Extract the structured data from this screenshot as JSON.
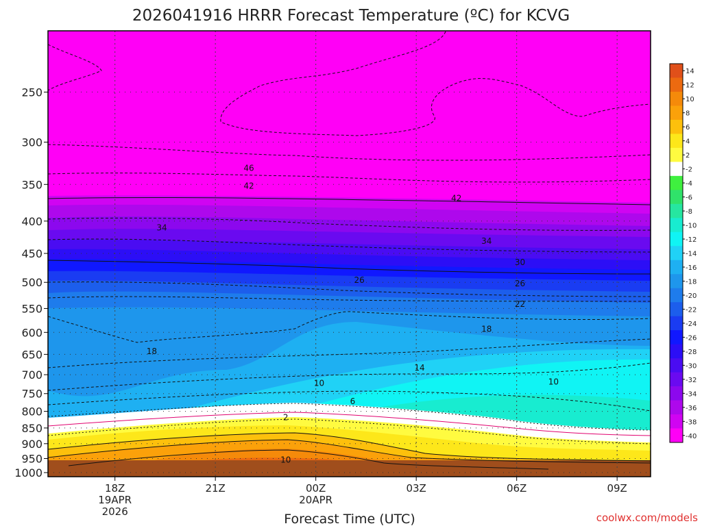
{
  "chart_data": {
    "type": "heatmap",
    "title": "2026041916 HRRR Forecast Temperature (ºC) for KCVG",
    "xlabel": "Forecast Time (UTC)",
    "ylabel": "",
    "credit": "coolwx.com/models",
    "x_ticks": [
      {
        "hours": 2,
        "lines": [
          "18Z",
          "19APR",
          "2026"
        ]
      },
      {
        "hours": 5,
        "lines": [
          "21Z"
        ]
      },
      {
        "hours": 8,
        "lines": [
          "00Z",
          "20APR"
        ]
      },
      {
        "hours": 11,
        "lines": [
          "03Z"
        ]
      },
      {
        "hours": 14,
        "lines": [
          "06Z"
        ]
      },
      {
        "hours": 17,
        "lines": [
          "09Z"
        ]
      }
    ],
    "x_range_hours": [
      0,
      18
    ],
    "y_ticks_hPa": [
      250,
      300,
      350,
      400,
      450,
      500,
      550,
      600,
      650,
      700,
      750,
      800,
      850,
      900,
      950,
      1000
    ],
    "y_range_hPa": [
      200,
      1015
    ],
    "colorbar": {
      "labels": [
        "14",
        "12",
        "10",
        "8",
        "6",
        "4",
        "2",
        "-2",
        "-4",
        "-6",
        "-8",
        "-10",
        "-12",
        "-14",
        "-16",
        "-18",
        "-20",
        "-22",
        "-24",
        "-26",
        "-28",
        "-30",
        "-32",
        "-34",
        "-36",
        "-38",
        "-40"
      ],
      "colors": [
        "#e0501a",
        "#ec6a10",
        "#f58a0a",
        "#fba10a",
        "#fdc00c",
        "#fde71a",
        "#fffb40",
        "#ffffff",
        "#3ff03f",
        "#30e26a",
        "#26e6a0",
        "#18ecd0",
        "#10f4f4",
        "#20d2f6",
        "#1eb0f2",
        "#1e96ec",
        "#1e7cec",
        "#1c5eec",
        "#1a3cf2",
        "#1018ff",
        "#2c0ef6",
        "#4a0cf2",
        "#6a0af0",
        "#8c08ee",
        "#ae08ec",
        "#d004f2",
        "#ff00f6"
      ]
    },
    "contour_labels": [
      {
        "text": "46",
        "hours": 6.0,
        "hPa": 330
      },
      {
        "text": "42",
        "hours": 6.0,
        "hPa": 352
      },
      {
        "text": "42",
        "hours": 12.2,
        "hPa": 368
      },
      {
        "text": "34",
        "hours": 3.4,
        "hPa": 410
      },
      {
        "text": "34",
        "hours": 13.1,
        "hPa": 430
      },
      {
        "text": "30",
        "hours": 14.1,
        "hPa": 465
      },
      {
        "text": "26",
        "hours": 9.3,
        "hPa": 496
      },
      {
        "text": "26",
        "hours": 14.1,
        "hPa": 502
      },
      {
        "text": "22",
        "hours": 14.1,
        "hPa": 541
      },
      {
        "text": "18",
        "hours": 13.1,
        "hPa": 593
      },
      {
        "text": "18",
        "hours": 3.1,
        "hPa": 643
      },
      {
        "text": "14",
        "hours": 11.1,
        "hPa": 683
      },
      {
        "text": "10",
        "hours": 8.1,
        "hPa": 722
      },
      {
        "text": "10",
        "hours": 15.1,
        "hPa": 718
      },
      {
        "text": "6",
        "hours": 9.1,
        "hPa": 771
      },
      {
        "text": "2",
        "hours": 7.1,
        "hPa": 818
      },
      {
        "text": "10",
        "hours": 7.1,
        "hPa": 955
      }
    ]
  }
}
